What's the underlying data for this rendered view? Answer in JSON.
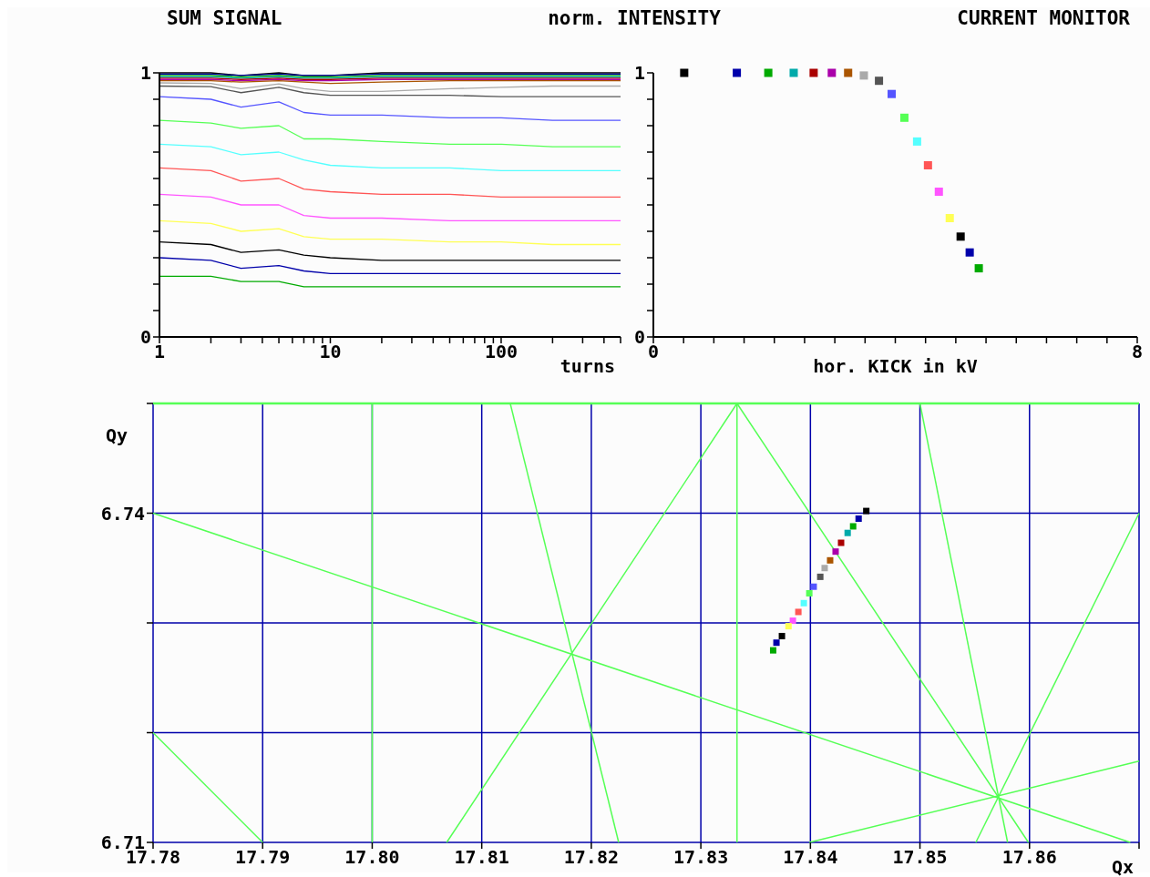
{
  "chart_data": [
    {
      "type": "line",
      "title": "SUM SIGNAL",
      "xlabel": "turns",
      "log": "x",
      "marker": "none",
      "x": [
        1,
        2,
        3,
        5,
        7,
        10,
        20,
        50,
        100,
        200,
        500
      ],
      "xlim": [
        1,
        500
      ],
      "xticks": [
        1,
        {
          "value": 2,
          "label": null
        },
        {
          "value": 3,
          "label": null
        },
        {
          "value": 4,
          "label": null
        },
        {
          "value": 5,
          "label": null
        },
        {
          "value": 6,
          "label": null
        },
        {
          "value": 7,
          "label": null
        },
        {
          "value": 8,
          "label": null
        },
        {
          "value": 9,
          "label": null
        },
        10,
        {
          "value": 20,
          "label": null
        },
        {
          "value": 30,
          "label": null
        },
        {
          "value": 40,
          "label": null
        },
        {
          "value": 50,
          "label": null
        },
        {
          "value": 60,
          "label": null
        },
        {
          "value": 70,
          "label": null
        },
        {
          "value": 80,
          "label": null
        },
        {
          "value": 90,
          "label": null
        },
        100,
        {
          "value": 200,
          "label": null
        },
        {
          "value": 300,
          "label": null
        },
        {
          "value": 400,
          "label": null
        },
        {
          "value": 500,
          "label": null
        }
      ],
      "ylim": [
        0,
        1
      ],
      "yticks": [
        0,
        {
          "value": 0.1,
          "label": null
        },
        {
          "value": 0.2,
          "label": null
        },
        {
          "value": 0.3,
          "label": null
        },
        {
          "value": 0.4,
          "label": null
        },
        {
          "value": 0.5,
          "label": null
        },
        {
          "value": 0.6,
          "label": null
        },
        {
          "value": 0.7,
          "label": null
        },
        {
          "value": 0.8,
          "label": null
        },
        {
          "value": 0.9,
          "label": null
        },
        1
      ],
      "series": [
        {
          "color": "#000000",
          "values": [
            1,
            1,
            0.99,
            1,
            0.99,
            0.99,
            1,
            1,
            1,
            1,
            1
          ]
        },
        {
          "color": "#0000aa",
          "values": [
            0.995,
            0.995,
            0.99,
            0.995,
            0.99,
            0.99,
            0.995,
            0.995,
            0.995,
            0.995,
            0.995
          ]
        },
        {
          "color": "#00aa00",
          "values": [
            0.99,
            0.99,
            0.985,
            0.99,
            0.985,
            0.985,
            0.99,
            0.99,
            0.99,
            0.99,
            0.99
          ]
        },
        {
          "color": "#00aaaa",
          "values": [
            0.985,
            0.985,
            0.98,
            0.985,
            0.98,
            0.98,
            0.985,
            0.985,
            0.985,
            0.985,
            0.985
          ]
        },
        {
          "color": "#aa0000",
          "values": [
            0.98,
            0.98,
            0.975,
            0.98,
            0.975,
            0.975,
            0.98,
            0.98,
            0.98,
            0.98,
            0.98
          ]
        },
        {
          "color": "#aa00aa",
          "values": [
            0.975,
            0.975,
            0.97,
            0.975,
            0.97,
            0.97,
            0.975,
            0.975,
            0.975,
            0.975,
            0.975
          ]
        },
        {
          "color": "#aa5500",
          "values": [
            0.97,
            0.97,
            0.965,
            0.97,
            0.965,
            0.96,
            0.965,
            0.97,
            0.97,
            0.97,
            0.97
          ]
        },
        {
          "color": "#aaaaaa",
          "values": [
            0.962,
            0.96,
            0.94,
            0.958,
            0.94,
            0.93,
            0.93,
            0.94,
            0.945,
            0.95,
            0.95
          ]
        },
        {
          "color": "#555555",
          "values": [
            0.95,
            0.948,
            0.925,
            0.945,
            0.925,
            0.915,
            0.915,
            0.915,
            0.91,
            0.91,
            0.91
          ]
        },
        {
          "color": "#5555ff",
          "values": [
            0.91,
            0.9,
            0.87,
            0.89,
            0.85,
            0.84,
            0.84,
            0.83,
            0.83,
            0.82,
            0.82
          ]
        },
        {
          "color": "#55ff55",
          "values": [
            0.82,
            0.81,
            0.79,
            0.8,
            0.75,
            0.75,
            0.74,
            0.73,
            0.73,
            0.72,
            0.72
          ]
        },
        {
          "color": "#55ffff",
          "values": [
            0.73,
            0.72,
            0.69,
            0.7,
            0.67,
            0.65,
            0.64,
            0.64,
            0.63,
            0.63,
            0.63
          ]
        },
        {
          "color": "#ff5555",
          "values": [
            0.64,
            0.63,
            0.59,
            0.6,
            0.56,
            0.55,
            0.54,
            0.54,
            0.53,
            0.53,
            0.53
          ]
        },
        {
          "color": "#ff55ff",
          "values": [
            0.54,
            0.53,
            0.5,
            0.5,
            0.46,
            0.45,
            0.45,
            0.44,
            0.44,
            0.44,
            0.44
          ]
        },
        {
          "color": "#ffff55",
          "values": [
            0.44,
            0.43,
            0.4,
            0.41,
            0.38,
            0.37,
            0.37,
            0.36,
            0.36,
            0.35,
            0.35
          ]
        },
        {
          "color": "#000000",
          "values": [
            0.36,
            0.35,
            0.32,
            0.33,
            0.31,
            0.3,
            0.29,
            0.29,
            0.29,
            0.29,
            0.29
          ]
        },
        {
          "color": "#0000aa",
          "values": [
            0.3,
            0.29,
            0.26,
            0.27,
            0.25,
            0.24,
            0.24,
            0.24,
            0.24,
            0.24,
            0.24
          ]
        },
        {
          "color": "#00aa00",
          "values": [
            0.23,
            0.23,
            0.21,
            0.21,
            0.19,
            0.19,
            0.19,
            0.19,
            0.19,
            0.19,
            0.19
          ]
        }
      ]
    },
    {
      "type": "scatter",
      "title": "CURRENT MONITOR",
      "ylabel": "norm. INTENSITY",
      "xlabel": "hor. KICK in kV",
      "marker": "square",
      "xlim": [
        0,
        8
      ],
      "xticks": [
        0,
        {
          "value": 0.5,
          "label": null
        },
        {
          "value": 1,
          "label": null
        },
        {
          "value": 1.5,
          "label": null
        },
        {
          "value": 2,
          "label": null
        },
        {
          "value": 2.5,
          "label": null
        },
        {
          "value": 3,
          "label": null
        },
        {
          "value": 3.5,
          "label": null
        },
        {
          "value": 4,
          "label": null
        },
        {
          "value": 4.5,
          "label": null
        },
        {
          "value": 5,
          "label": null
        },
        {
          "value": 5.5,
          "label": null
        },
        {
          "value": 6,
          "label": null
        },
        {
          "value": 6.5,
          "label": null
        },
        {
          "value": 7,
          "label": null
        },
        {
          "value": 7.5,
          "label": null
        },
        8
      ],
      "ylim": [
        0,
        1
      ],
      "yticks": [
        0,
        {
          "value": 0.1,
          "label": null
        },
        {
          "value": 0.2,
          "label": null
        },
        {
          "value": 0.3,
          "label": null
        },
        {
          "value": 0.4,
          "label": null
        },
        {
          "value": 0.5,
          "label": null
        },
        {
          "value": 0.6,
          "label": null
        },
        {
          "value": 0.7,
          "label": null
        },
        {
          "value": 0.8,
          "label": null
        },
        {
          "value": 0.9,
          "label": null
        },
        1
      ],
      "x": [
        0.51,
        1.38,
        1.9,
        2.32,
        2.65,
        2.95,
        3.22,
        3.48,
        3.73,
        3.94,
        4.15,
        4.36,
        4.54,
        4.72,
        4.9,
        5.08,
        5.23,
        5.38
      ],
      "values": [
        1,
        1,
        1,
        1,
        1,
        1,
        1,
        0.99,
        0.97,
        0.92,
        0.83,
        0.74,
        0.65,
        0.55,
        0.45,
        0.38,
        0.32,
        0.26
      ],
      "colors": [
        "#000000",
        "#0000aa",
        "#00aa00",
        "#00aaaa",
        "#aa0000",
        "#aa00aa",
        "#aa5500",
        "#aaaaaa",
        "#555555",
        "#5555ff",
        "#55ff55",
        "#55ffff",
        "#ff5555",
        "#ff55ff",
        "#ffff55",
        "#000000",
        "#0000aa",
        "#00aa00"
      ]
    },
    {
      "type": "scatter",
      "xlabel": "Qx",
      "ylabel": "Qy",
      "marker": "square",
      "grid": true,
      "ref_lines": [
        {
          "axis": "y",
          "value": 6.75,
          "color": "#55ff55"
        }
      ],
      "xlim": [
        17.78,
        17.87
      ],
      "xticks": [
        17.78,
        17.79,
        {
          "value": 17.8,
          "label": "17.80"
        },
        17.81,
        17.82,
        17.83,
        17.84,
        17.85,
        17.86,
        {
          "value": 17.87,
          "label": null
        }
      ],
      "ylim": [
        6.71,
        6.75
      ],
      "yticks": [
        6.71,
        {
          "value": 6.72,
          "label": null
        },
        {
          "value": 6.73,
          "label": null
        },
        6.74,
        {
          "value": 6.75,
          "label": null
        }
      ],
      "series": [
        {
          "x": [
            17.8451,
            17.8444,
            17.8439,
            17.8434,
            17.8428,
            17.8423,
            17.8418,
            17.8413,
            17.8409,
            17.8403,
            17.8399,
            17.8394,
            17.8389,
            17.8384,
            17.838,
            17.8374,
            17.8369,
            17.8366
          ],
          "values": [
            6.7402,
            6.7395,
            6.7388,
            6.7382,
            6.7373,
            6.7365,
            6.7357,
            6.735,
            6.7342,
            6.7333,
            6.7327,
            6.7318,
            6.731,
            6.7302,
            6.7297,
            6.7288,
            6.7282,
            6.7275
          ],
          "colors": [
            "#000000",
            "#0000aa",
            "#00aa00",
            "#00aaaa",
            "#aa0000",
            "#aa00aa",
            "#aa5500",
            "#aaaaaa",
            "#555555",
            "#5555ff",
            "#55ff55",
            "#55ffff",
            "#ff5555",
            "#ff55ff",
            "#ffff55",
            "#000000",
            "#0000aa",
            "#00aa00"
          ]
        },
        {
          "type": "line",
          "marker": "none",
          "color": "#55ff55",
          "x": [
            17.78,
            17.8692
          ],
          "values": [
            6.74,
            6.71
          ]
        },
        {
          "type": "line",
          "marker": "none",
          "color": "#55ff55",
          "x": [
            17.8,
            17.8
          ],
          "values": [
            6.71,
            6.75
          ]
        },
        {
          "type": "line",
          "marker": "none",
          "color": "#55ff55",
          "x": [
            17.8333,
            17.8333
          ],
          "values": [
            6.71,
            6.75
          ]
        },
        {
          "type": "line",
          "marker": "none",
          "color": "#55ff55",
          "x": [
            17.8068,
            17.8333,
            17.8599
          ],
          "values": [
            6.71,
            6.75,
            6.71
          ]
        },
        {
          "type": "line",
          "marker": "none",
          "color": "#55ff55",
          "x": [
            17.8126,
            17.8225
          ],
          "values": [
            6.75,
            6.71
          ]
        },
        {
          "type": "line",
          "marker": "none",
          "color": "#55ff55",
          "x": [
            17.85,
            17.858
          ],
          "values": [
            6.75,
            6.71
          ]
        },
        {
          "type": "line",
          "marker": "none",
          "color": "#55ff55",
          "x": [
            17.8551,
            17.87
          ],
          "values": [
            6.71,
            6.74
          ]
        },
        {
          "type": "line",
          "marker": "none",
          "color": "#55ff55",
          "x": [
            17.8399,
            17.87
          ],
          "values": [
            6.71,
            6.7174
          ]
        },
        {
          "type": "line",
          "marker": "none",
          "color": "#55ff55",
          "x": [
            17.78,
            17.79
          ],
          "values": [
            6.72,
            6.71
          ]
        }
      ]
    }
  ]
}
